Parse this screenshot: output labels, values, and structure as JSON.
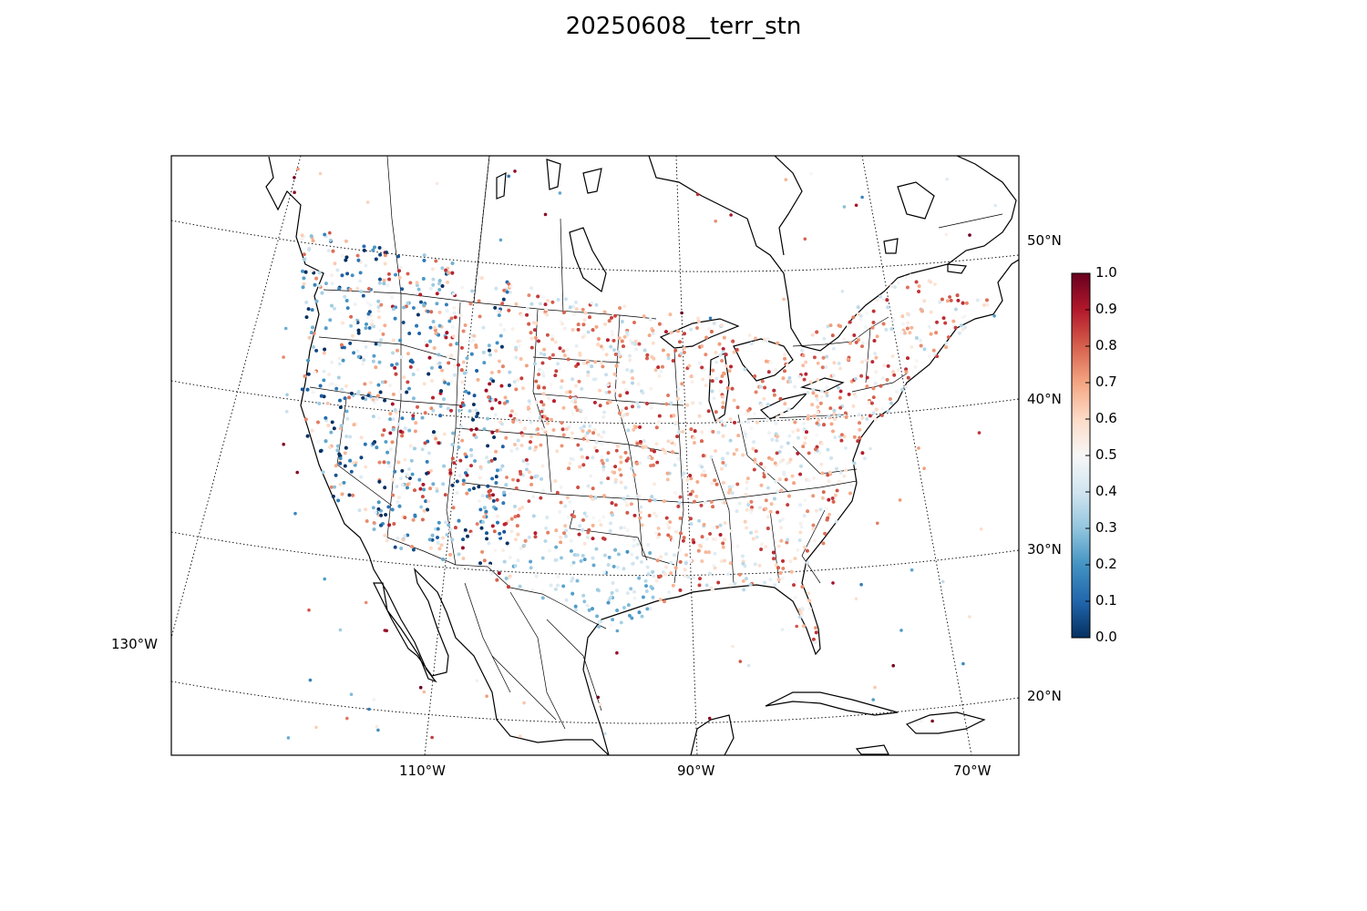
{
  "title": "20250608__terr_stn",
  "map": {
    "projection": "lambert-conformal",
    "region": "CONUS",
    "lat_labels": [
      "50°N",
      "40°N",
      "30°N",
      "20°N"
    ],
    "lon_labels": [
      "130°W",
      "110°W",
      "90°W",
      "70°W"
    ],
    "gridlines": true
  },
  "colorbar": {
    "colormap": "RdBu_r",
    "min": 0.0,
    "max": 1.0,
    "ticks": [
      "0.0",
      "0.1",
      "0.2",
      "0.3",
      "0.4",
      "0.5",
      "0.6",
      "0.7",
      "0.8",
      "0.9",
      "1.0"
    ],
    "low_color": "#053061",
    "mid_color": "#f7f7f7",
    "high_color": "#67001f"
  },
  "points": {
    "description_counts": 6000
  }
}
